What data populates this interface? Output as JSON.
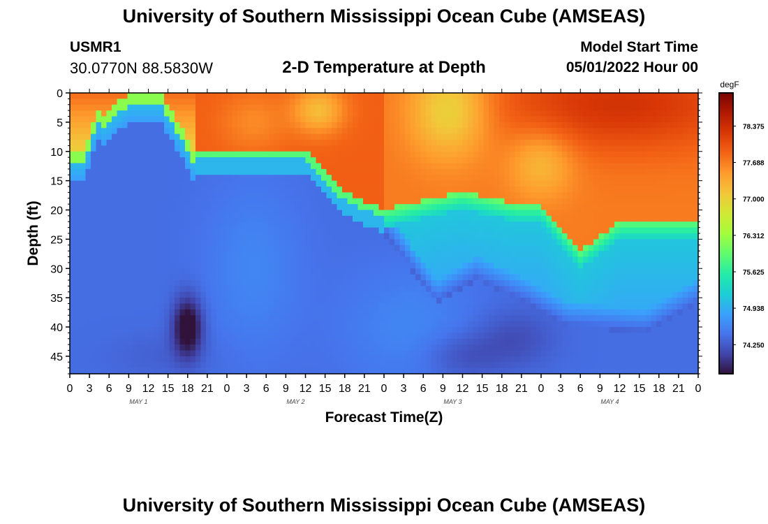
{
  "header": {
    "title": "University of Southern Mississippi Ocean Cube (AMSEAS)",
    "station_id": "USMR1",
    "station_coords": "30.0770N  88.5830W",
    "plot_title": "2-D Temperature at Depth",
    "model_start_label": "Model Start Time",
    "model_start_value": "05/01/2022 Hour 00"
  },
  "footer": {
    "title": "University of Southern Mississippi Ocean Cube (AMSEAS)"
  },
  "chart_data": {
    "type": "heatmap",
    "title": "2-D Temperature at Depth",
    "xlabel": "Forecast Time(Z)",
    "ylabel": "Depth (ft)",
    "x_hours": [
      0,
      96
    ],
    "x_tick_labels": [
      "0",
      "3",
      "6",
      "9",
      "12",
      "15",
      "18",
      "21",
      "0",
      "3",
      "6",
      "9",
      "12",
      "15",
      "18",
      "21",
      "0",
      "3",
      "6",
      "9",
      "12",
      "15",
      "18",
      "21",
      "0",
      "3",
      "6",
      "9",
      "12",
      "15",
      "18",
      "21",
      "0"
    ],
    "day_labels": [
      "MAY 1",
      "MAY 2",
      "MAY 3",
      "MAY 4"
    ],
    "y_ticks": [
      0,
      5,
      10,
      15,
      20,
      25,
      30,
      35,
      40,
      45
    ],
    "ylim": [
      48,
      0
    ],
    "colorbar": {
      "unit": "degF",
      "min": 73.7,
      "max": 79.0,
      "tick_values": [
        78.375,
        77.688,
        77.0,
        76.312,
        75.625,
        74.938,
        74.25
      ],
      "tick_labels": [
        "78.375",
        "77.688",
        "77.000",
        "76.312",
        "75.625",
        "74.938",
        "74.250"
      ],
      "colors": [
        "#30123b",
        "#4145ab",
        "#4675ed",
        "#39a2fc",
        "#1bcfd4",
        "#24eca6",
        "#61fc6c",
        "#a4fc3b",
        "#d1e834",
        "#f3c63a",
        "#fe9b2d",
        "#f36315",
        "#d93806",
        "#b11901",
        "#7a0402"
      ]
    }
  }
}
